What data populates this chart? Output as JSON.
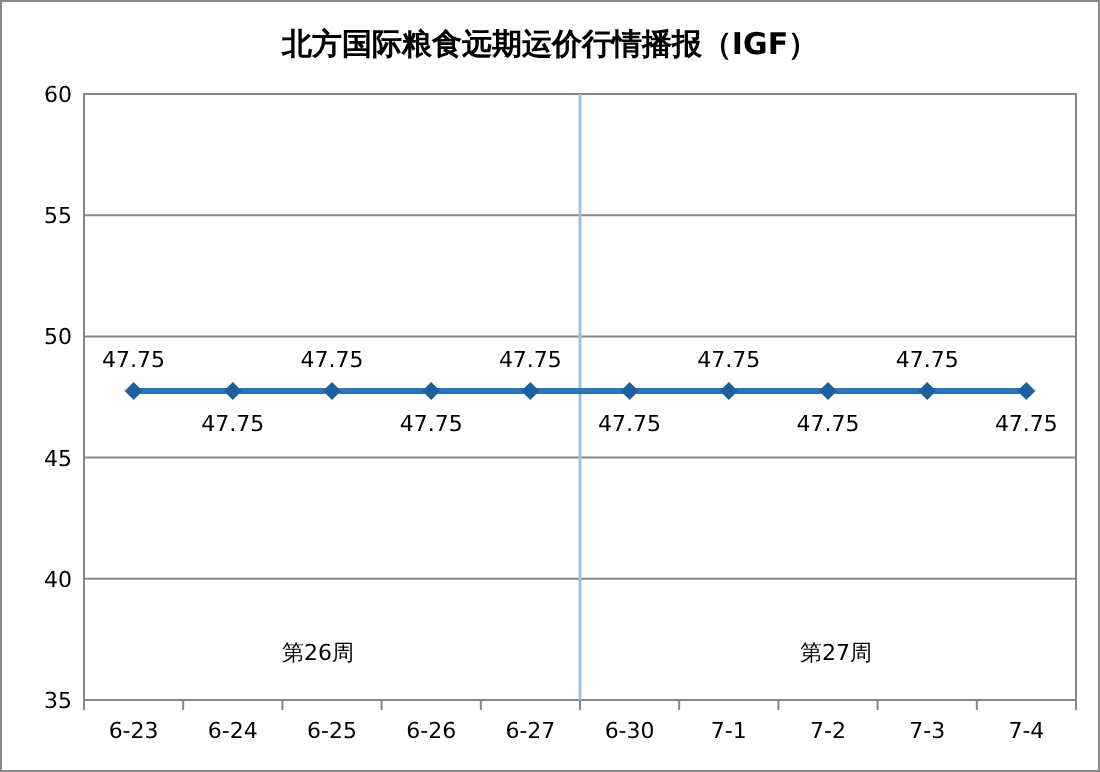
{
  "chart_data": {
    "type": "line",
    "title": "北方国际粮食远期运价行情播报（IGF）",
    "categories": [
      "6-23",
      "6-24",
      "6-25",
      "6-26",
      "6-27",
      "6-30",
      "7-1",
      "7-2",
      "7-3",
      "7-4"
    ],
    "series": [
      {
        "color": "#2e75b6",
        "values": [
          47.75,
          47.75,
          47.75,
          47.75,
          47.75,
          47.75,
          47.75,
          47.75,
          47.75,
          47.75
        ]
      }
    ],
    "ylim": [
      35,
      60
    ],
    "yticks": [
      35,
      40,
      45,
      50,
      55,
      60
    ],
    "grid": "y",
    "marker": "diamond",
    "line_style": "solid",
    "data_labels": true,
    "ref_lines": [
      {
        "axis": "x",
        "value": "6-30",
        "color": "#9dc3e6"
      }
    ],
    "annotations": [
      "第26周",
      "第27周"
    ]
  }
}
